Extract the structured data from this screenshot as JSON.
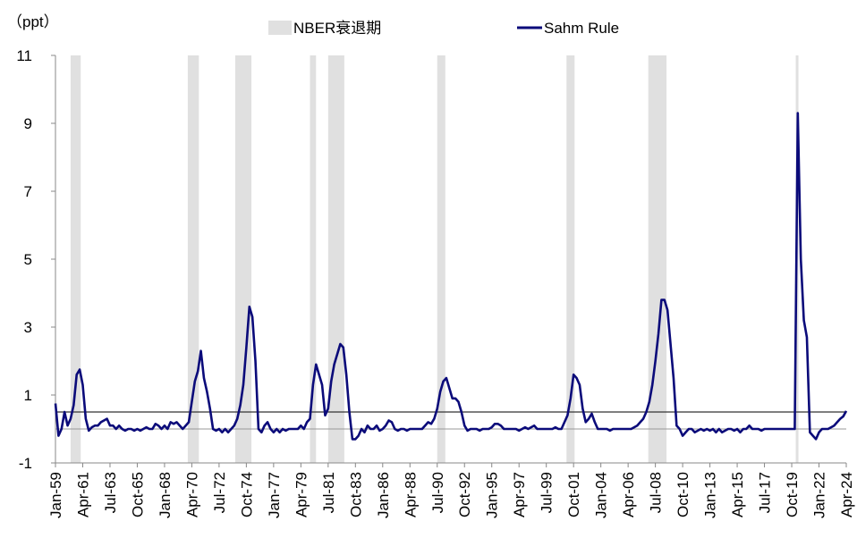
{
  "chart_data": {
    "type": "line",
    "y_unit_label": "（ppt）",
    "ylim": [
      -1,
      11
    ],
    "yticks": [
      -1,
      1,
      3,
      5,
      7,
      9,
      11
    ],
    "threshold": 0.5,
    "recession_name": "NBER衰退期",
    "recession_color": "#e0e0e0",
    "recessions": [
      [
        "Apr-60",
        "Feb-61"
      ],
      [
        "Dec-69",
        "Nov-70"
      ],
      [
        "Nov-73",
        "Mar-75"
      ],
      [
        "Jan-80",
        "Jul-80"
      ],
      [
        "Jul-81",
        "Nov-82"
      ],
      [
        "Jul-90",
        "Mar-91"
      ],
      [
        "Mar-01",
        "Nov-01"
      ],
      [
        "Dec-07",
        "Jun-09"
      ],
      [
        "Feb-20",
        "Apr-20"
      ]
    ],
    "categories": [
      "Jan-59",
      null,
      null,
      null,
      null,
      null,
      null,
      null,
      null,
      "Apr-61",
      null,
      null,
      null,
      null,
      null,
      null,
      null,
      null,
      "Jul-63",
      null,
      null,
      null,
      null,
      null,
      null,
      null,
      null,
      "Oct-65",
      null,
      null,
      null,
      null,
      null,
      null,
      null,
      null,
      "Jan-68",
      null,
      null,
      null,
      null,
      null,
      null,
      null,
      null,
      "Apr-70",
      null,
      null,
      null,
      null,
      null,
      null,
      null,
      null,
      "Jul-72",
      null,
      null,
      null,
      null,
      null,
      null,
      null,
      null,
      "Oct-74",
      null,
      null,
      null,
      null,
      null,
      null,
      null,
      null,
      "Jan-77",
      null,
      null,
      null,
      null,
      null,
      null,
      null,
      null,
      "Apr-79",
      null,
      null,
      null,
      null,
      null,
      null,
      null,
      null,
      "Jul-81",
      null,
      null,
      null,
      null,
      null,
      null,
      null,
      null,
      "Oct-83",
      null,
      null,
      null,
      null,
      null,
      null,
      null,
      null,
      "Jan-86",
      null,
      null,
      null,
      null,
      null,
      null,
      null,
      null,
      "Apr-88",
      null,
      null,
      null,
      null,
      null,
      null,
      null,
      null,
      "Jul-90",
      null,
      null,
      null,
      null,
      null,
      null,
      null,
      null,
      "Oct-92",
      null,
      null,
      null,
      null,
      null,
      null,
      null,
      null,
      "Jan-95",
      null,
      null,
      null,
      null,
      null,
      null,
      null,
      null,
      "Apr-97",
      null,
      null,
      null,
      null,
      null,
      null,
      null,
      null,
      "Jul-99",
      null,
      null,
      null,
      null,
      null,
      null,
      null,
      null,
      "Oct-01",
      null,
      null,
      null,
      null,
      null,
      null,
      null,
      null,
      "Jan-04",
      null,
      null,
      null,
      null,
      null,
      null,
      null,
      null,
      "Apr-06",
      null,
      null,
      null,
      null,
      null,
      null,
      null,
      null,
      "Jul-08",
      null,
      null,
      null,
      null,
      null,
      null,
      null,
      null,
      "Oct-10",
      null,
      null,
      null,
      null,
      null,
      null,
      null,
      null,
      "Jan-13",
      null,
      null,
      null,
      null,
      null,
      null,
      null,
      null,
      "Apr-15",
      null,
      null,
      null,
      null,
      null,
      null,
      null,
      null,
      "Jul-17",
      null,
      null,
      null,
      null,
      null,
      null,
      null,
      null,
      "Oct-19",
      null,
      null,
      null,
      null,
      null,
      null,
      null,
      null,
      "Jan-22",
      null,
      null,
      null,
      null,
      null,
      null,
      null,
      null,
      "Apr-24"
    ],
    "series": [
      {
        "name": "Sahm Rule",
        "color": "#0b0b7a",
        "values": [
          0.75,
          -0.2,
          0.0,
          0.5,
          0.1,
          0.3,
          0.7,
          1.6,
          1.75,
          1.3,
          0.3,
          -0.05,
          0.05,
          0.1,
          0.1,
          0.2,
          0.25,
          0.3,
          0.1,
          0.1,
          0.0,
          0.1,
          0.0,
          -0.05,
          0.0,
          0.0,
          -0.05,
          0.0,
          -0.05,
          0.0,
          0.05,
          0.0,
          0.0,
          0.15,
          0.1,
          0.0,
          0.1,
          0.0,
          0.2,
          0.15,
          0.2,
          0.1,
          0.0,
          0.1,
          0.2,
          0.8,
          1.4,
          1.7,
          2.3,
          1.5,
          1.1,
          0.6,
          0.0,
          -0.05,
          0.0,
          -0.1,
          0.0,
          -0.1,
          0.0,
          0.1,
          0.3,
          0.7,
          1.3,
          2.4,
          3.6,
          3.3,
          2.0,
          0.0,
          -0.1,
          0.1,
          0.2,
          0.0,
          -0.1,
          0.0,
          -0.1,
          0.0,
          -0.05,
          0.0,
          0.0,
          0.0,
          0.0,
          0.1,
          0.0,
          0.2,
          0.3,
          1.3,
          1.9,
          1.6,
          1.3,
          0.4,
          0.6,
          1.4,
          1.9,
          2.2,
          2.5,
          2.4,
          1.6,
          0.5,
          -0.3,
          -0.3,
          -0.2,
          0.0,
          -0.1,
          0.1,
          0.0,
          0.0,
          0.1,
          -0.05,
          0.0,
          0.1,
          0.25,
          0.2,
          0.0,
          -0.05,
          0.0,
          0.0,
          -0.05,
          0.0,
          0.0,
          0.0,
          0.0,
          0.0,
          0.1,
          0.2,
          0.15,
          0.3,
          0.6,
          1.1,
          1.4,
          1.5,
          1.2,
          0.9,
          0.9,
          0.8,
          0.5,
          0.1,
          -0.05,
          0.0,
          0.0,
          0.0,
          -0.05,
          0.0,
          0.0,
          0.0,
          0.05,
          0.15,
          0.15,
          0.1,
          0.0,
          0.0,
          0.0,
          0.0,
          0.0,
          -0.05,
          0.0,
          0.05,
          0.0,
          0.05,
          0.1,
          0.0,
          0.0,
          0.0,
          0.0,
          0.0,
          0.0,
          0.05,
          0.0,
          0.0,
          0.2,
          0.4,
          0.9,
          1.6,
          1.5,
          1.3,
          0.6,
          0.2,
          0.3,
          0.45,
          0.2,
          0.0,
          0.0,
          0.0,
          0.0,
          -0.05,
          0.0,
          0.0,
          0.0,
          0.0,
          0.0,
          0.0,
          0.0,
          0.05,
          0.1,
          0.2,
          0.3,
          0.5,
          0.8,
          1.3,
          2.0,
          2.8,
          3.8,
          3.8,
          3.5,
          2.5,
          1.5,
          0.1,
          0.0,
          -0.2,
          -0.1,
          0.0,
          0.0,
          -0.1,
          -0.05,
          0.0,
          -0.05,
          0.0,
          -0.05,
          0.0,
          -0.1,
          0.0,
          -0.1,
          -0.05,
          0.0,
          0.0,
          -0.05,
          0.0,
          -0.1,
          0.0,
          0.0,
          0.1,
          0.0,
          0.0,
          0.0,
          -0.05,
          0.0,
          0.0,
          0.0,
          0.0,
          0.0,
          0.0,
          0.0,
          0.0,
          0.0,
          0.0,
          0.0,
          9.3,
          5.0,
          3.2,
          2.7,
          -0.1,
          -0.2,
          -0.3,
          -0.1,
          0.0,
          0.0,
          0.0,
          0.05,
          0.1,
          0.2,
          0.3,
          0.37,
          0.53
        ]
      }
    ]
  }
}
